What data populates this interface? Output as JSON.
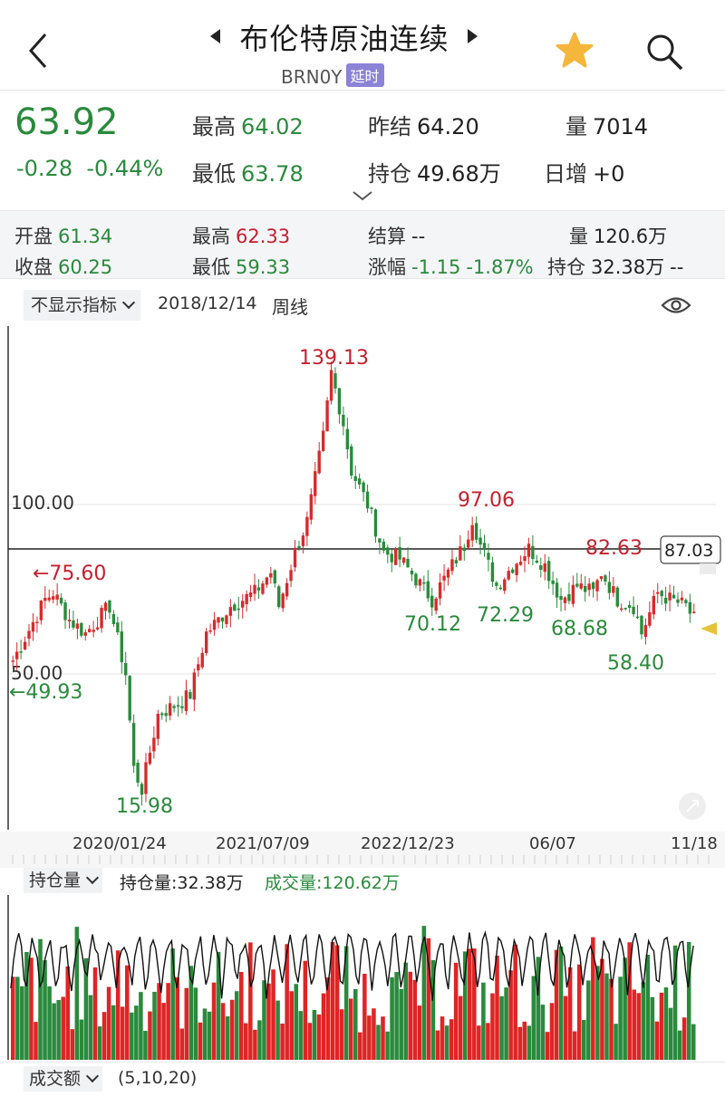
{
  "header": {
    "title": "布伦特原油连续",
    "code": "BRN0Y",
    "delay_badge": "延时",
    "icons": [
      "back-icon",
      "prev-triangle-icon",
      "next-triangle-icon",
      "star-icon",
      "search-icon"
    ],
    "star_color": "#f5b63b"
  },
  "quote": {
    "last": "63.92",
    "change": "-0.28",
    "change_pct": "-0.44%",
    "high_label": "最高",
    "high": "64.02",
    "low_label": "最低",
    "low": "63.78",
    "prev_settle_label": "昨结",
    "prev_settle": "64.20",
    "oi_label": "持仓",
    "oi": "49.68万",
    "vol_label": "量",
    "vol": "7014",
    "daily_inc_label": "日增",
    "daily_inc": "+0"
  },
  "period_bar": {
    "open_label": "开盘",
    "open": "61.34",
    "high_label": "最高",
    "high": "62.33",
    "settle_label": "结算",
    "settle": "--",
    "vol_label": "量",
    "vol": "120.6万",
    "close_label": "收盘",
    "close": "60.25",
    "low_label": "最低",
    "low": "59.33",
    "chg_label": "涨幅",
    "chg": "-1.15",
    "chg_pct": "-1.87%",
    "oi_label": "持仓",
    "oi": "32.38万",
    "oi_chg": "--"
  },
  "toolbar": {
    "indicator_select": "不显示指标",
    "date": "2018/12/14",
    "period": "周线"
  },
  "chart_data": {
    "type": "candlestick",
    "y_ticks": [
      "100.00",
      "50.00"
    ],
    "crosshair_price": "87.03",
    "annotations": {
      "high_all": "139.13",
      "low_all": "15.98",
      "left_high": "←75.60",
      "left_low": "←49.93",
      "peak2": "97.06",
      "peak3": "82.63",
      "trough1": "70.12",
      "trough2": "72.29",
      "trough3": "68.68",
      "trough4": "58.40"
    },
    "x_ticks": [
      "2020/01/24",
      "2021/07/09",
      "2022/12/23",
      "06/07",
      "11/18"
    ],
    "colors": {
      "up": "#d62b2b",
      "down": "#2a8a3c",
      "axis": "#333333",
      "grid": "#e3e3e3"
    },
    "anchors": [
      [
        0,
        54
      ],
      [
        8,
        72
      ],
      [
        10,
        74
      ],
      [
        14,
        66
      ],
      [
        18,
        62
      ],
      [
        24,
        70
      ],
      [
        28,
        50
      ],
      [
        30,
        22
      ],
      [
        32,
        16
      ],
      [
        36,
        38
      ],
      [
        42,
        42
      ],
      [
        44,
        44
      ],
      [
        48,
        62
      ],
      [
        54,
        70
      ],
      [
        60,
        74
      ],
      [
        64,
        80
      ],
      [
        66,
        70
      ],
      [
        70,
        86
      ],
      [
        73,
        95
      ],
      [
        77,
        120
      ],
      [
        79,
        139
      ],
      [
        82,
        124
      ],
      [
        84,
        110
      ],
      [
        88,
        100
      ],
      [
        92,
        86
      ],
      [
        96,
        84
      ],
      [
        100,
        78
      ],
      [
        104,
        72
      ],
      [
        108,
        80
      ],
      [
        112,
        88
      ],
      [
        114,
        96
      ],
      [
        116,
        88
      ],
      [
        120,
        76
      ],
      [
        124,
        82
      ],
      [
        128,
        87
      ],
      [
        132,
        82
      ],
      [
        136,
        72
      ],
      [
        140,
        76
      ],
      [
        144,
        74
      ],
      [
        146,
        80
      ],
      [
        150,
        72
      ],
      [
        154,
        70
      ],
      [
        156,
        62
      ],
      [
        160,
        74
      ],
      [
        163,
        72
      ],
      [
        167,
        70
      ],
      [
        169,
        66
      ]
    ]
  },
  "volume_panel": {
    "select": "持仓量",
    "oi_label": "持仓量:32.38万",
    "vol_label": "成交量:120.62万",
    "oi_color": "#222222",
    "vol_color": "#2a8a3c"
  },
  "footer": {
    "select": "成交额",
    "params": "(5,10,20)"
  }
}
